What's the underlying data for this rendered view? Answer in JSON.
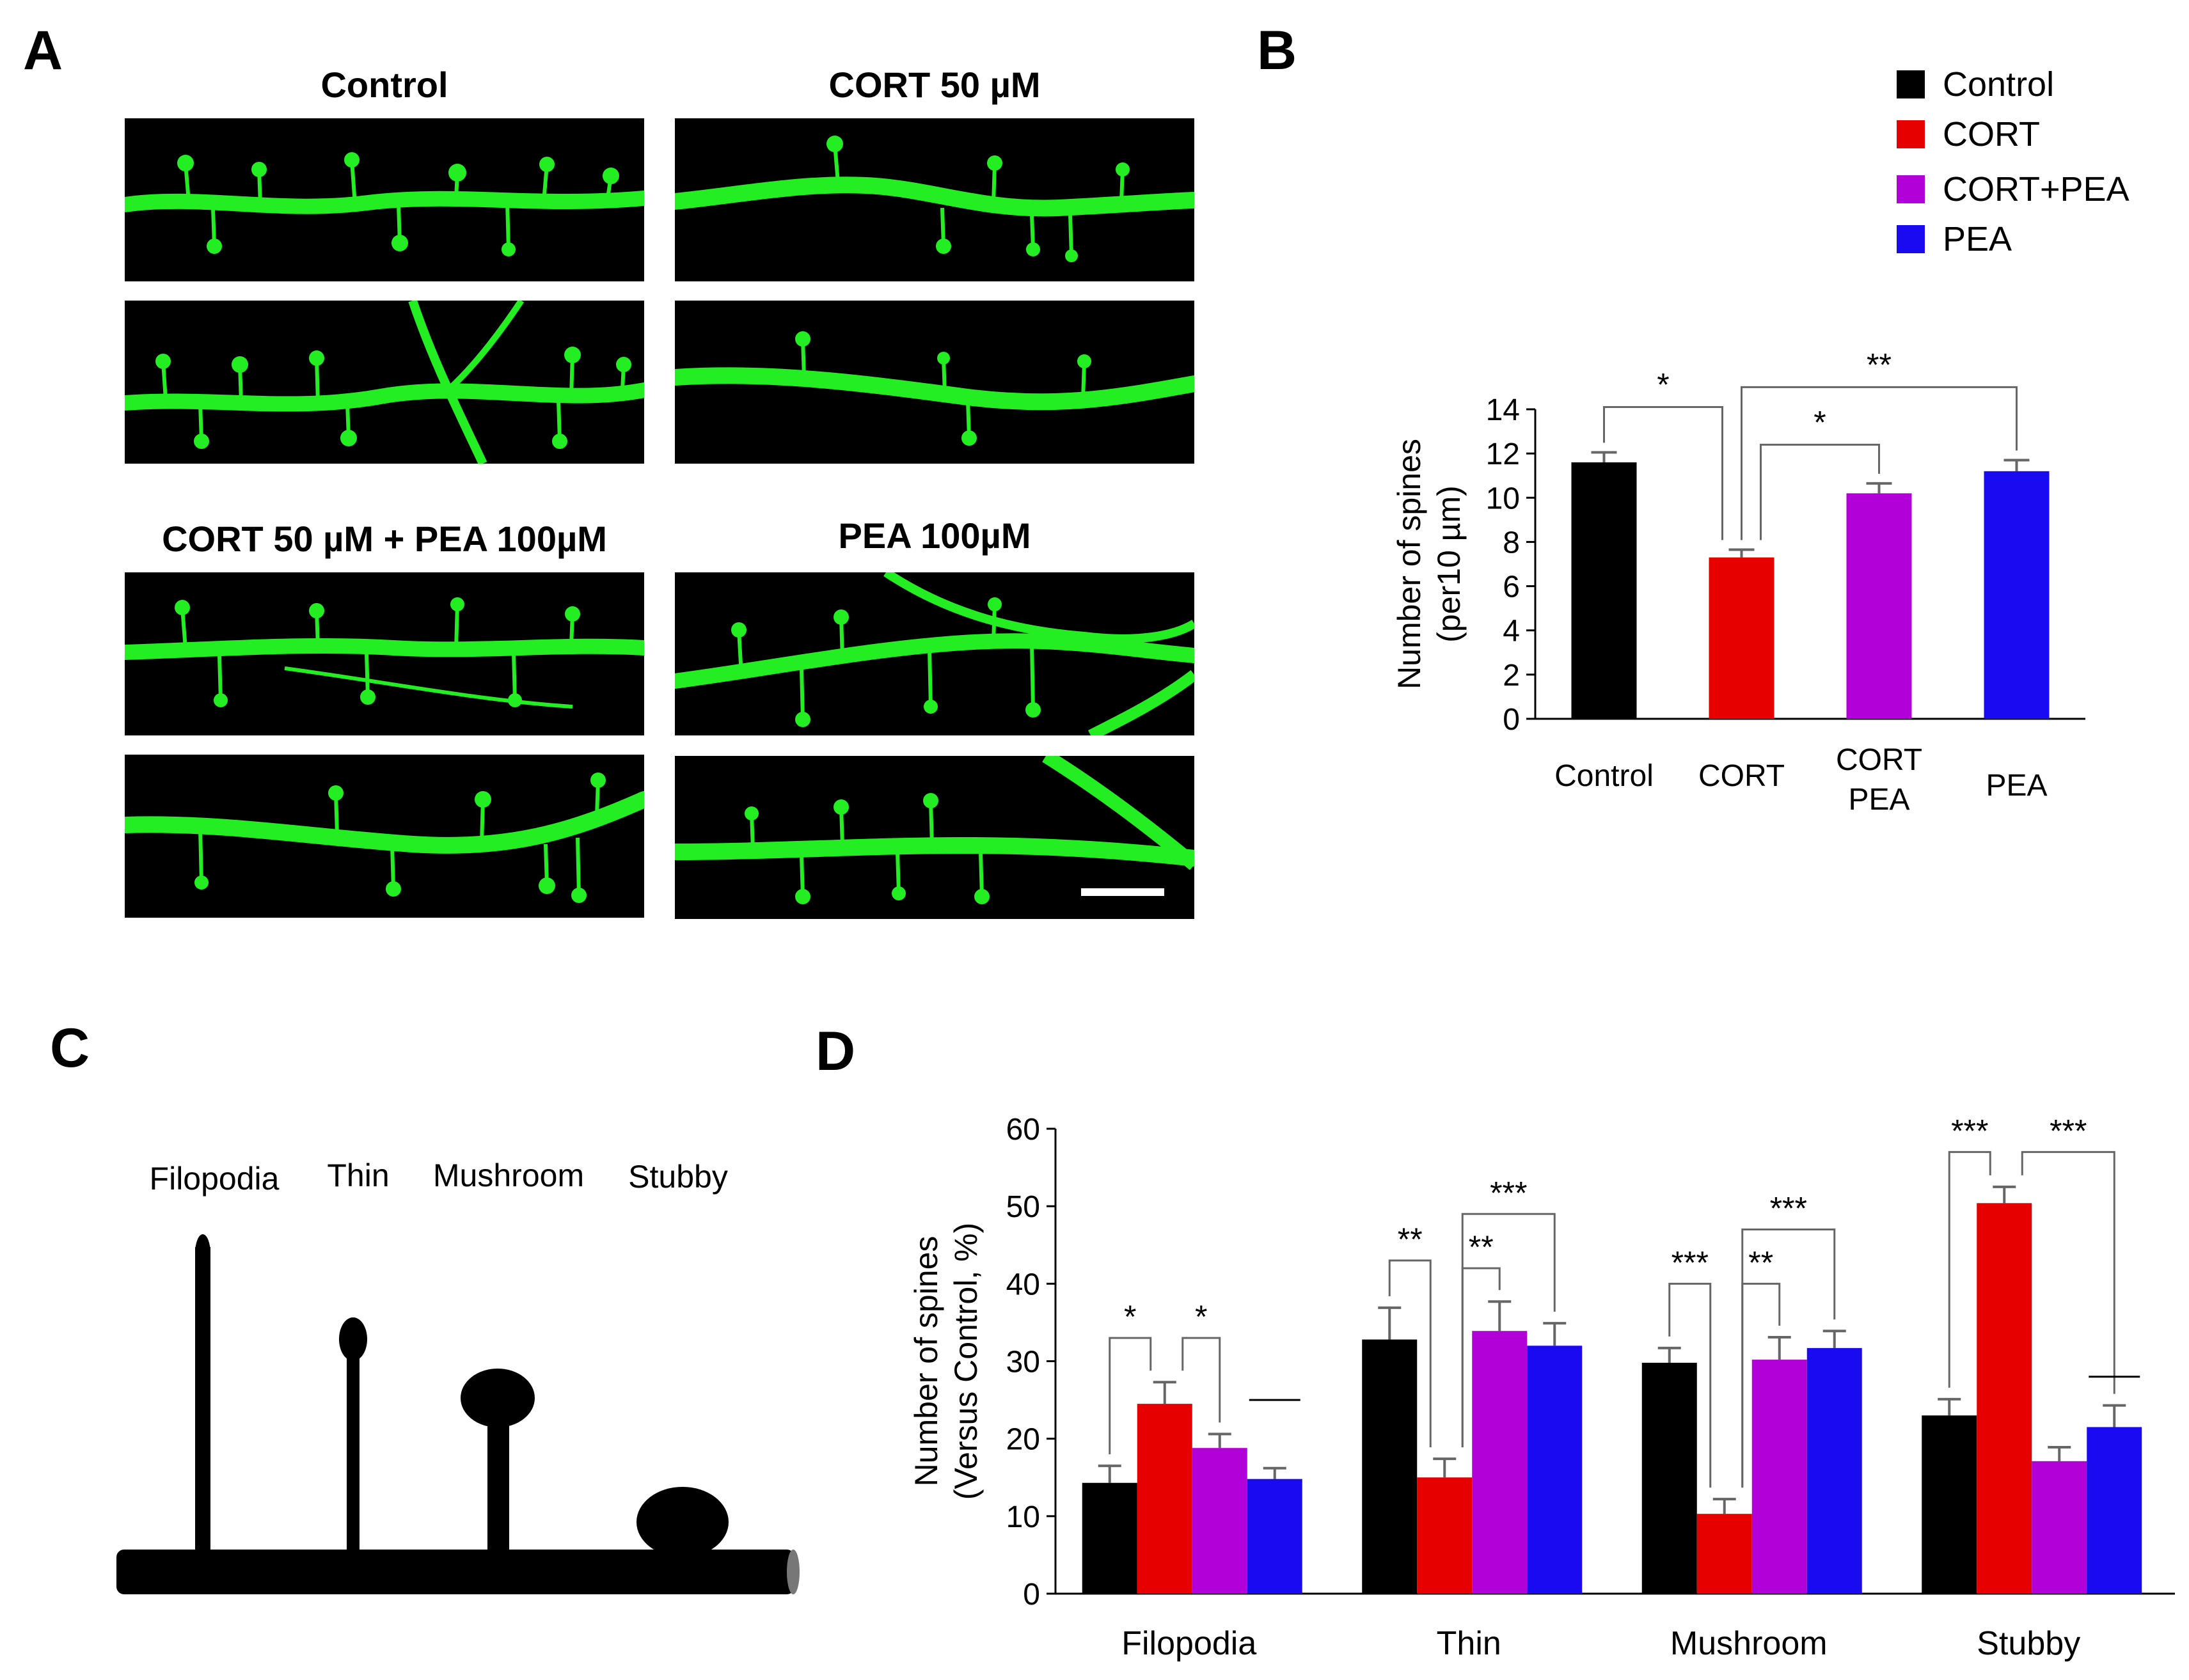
{
  "panels": {
    "a": "A",
    "b": "B",
    "c": "C",
    "d": "D"
  },
  "micrographs": {
    "titles": [
      "Control",
      "CORT 50 µM",
      "CORT 50 µM + PEA 100µM",
      "PEA 100µM"
    ],
    "dendrite_color": "#22ee22"
  },
  "schematic": {
    "labels": [
      "Filopodia",
      "Thin",
      "Mushroom",
      "Stubby"
    ]
  },
  "colors": {
    "Control": "#000000",
    "CORT": "#e60000",
    "CORT+PEA": "#b200d8",
    "PEA": "#1a0af0"
  },
  "chart_data": [
    {
      "type": "bar",
      "panel": "B",
      "title": "",
      "ylabel_lines": [
        "Number of spines",
        "(per10 µm)"
      ],
      "ylim": [
        0,
        14
      ],
      "yticks": [
        0,
        2,
        4,
        6,
        8,
        10,
        12,
        14
      ],
      "legend": [
        "Control",
        "CORT",
        "CORT+PEA",
        "PEA"
      ],
      "legend_position": "top-right",
      "categories": [
        "Control",
        "CORT",
        "CORT PEA",
        "PEA"
      ],
      "category_label_lines": [
        [
          "Control"
        ],
        [
          "CORT"
        ],
        [
          "CORT",
          "PEA"
        ],
        [
          "PEA"
        ]
      ],
      "series_colors": [
        "#000000",
        "#e60000",
        "#b200d8",
        "#1a0af0"
      ],
      "values": [
        11.6,
        7.3,
        10.2,
        11.2
      ],
      "errors": [
        0.45,
        0.35,
        0.45,
        0.5
      ],
      "significance": [
        {
          "from": 0,
          "to": 1,
          "label": "*"
        },
        {
          "from": 1,
          "to": 2,
          "label": "*"
        },
        {
          "from": 1,
          "to": 3,
          "label": "**"
        }
      ]
    },
    {
      "type": "bar",
      "panel": "D",
      "title": "",
      "ylabel_lines": [
        "Number of spines",
        "(Versus Control, %)"
      ],
      "ylim": [
        0,
        60
      ],
      "yticks": [
        0,
        10,
        20,
        30,
        40,
        50,
        60
      ],
      "categories": [
        "Filopodia",
        "Thin",
        "Mushroom",
        "Stubby"
      ],
      "series": [
        {
          "name": "Control",
          "color": "#000000",
          "values": [
            14.3,
            32.8,
            29.8,
            23.0
          ],
          "errors": [
            2.2,
            4.1,
            1.9,
            2.1
          ]
        },
        {
          "name": "CORT",
          "color": "#e60000",
          "values": [
            24.5,
            15.0,
            10.3,
            50.4
          ],
          "errors": [
            2.8,
            2.4,
            1.9,
            2.1
          ]
        },
        {
          "name": "CORT+PEA",
          "color": "#b200d8",
          "values": [
            18.8,
            33.9,
            30.2,
            17.1
          ],
          "errors": [
            1.8,
            3.8,
            2.9,
            1.8
          ]
        },
        {
          "name": "PEA",
          "color": "#1a0af0",
          "values": [
            14.8,
            32.0,
            31.7,
            21.5
          ],
          "errors": [
            1.4,
            2.9,
            2.2,
            2.8
          ]
        }
      ],
      "significance": [
        {
          "group": 0,
          "from": 0,
          "to": 1,
          "label": "*",
          "y": 33
        },
        {
          "group": 0,
          "from": 1,
          "to": 2,
          "label": "*",
          "y": 33
        },
        {
          "group": 0,
          "from": 3,
          "to": 3,
          "label": "—",
          "y": 25
        },
        {
          "group": 1,
          "from": 0,
          "to": 1,
          "label": "**",
          "y": 43
        },
        {
          "group": 1,
          "from": 1,
          "to": 2,
          "label": "**",
          "y": 42
        },
        {
          "group": 1,
          "from": 1,
          "to": 3,
          "label": "***",
          "y": 49
        },
        {
          "group": 2,
          "from": 0,
          "to": 1,
          "label": "***",
          "y": 40
        },
        {
          "group": 2,
          "from": 1,
          "to": 2,
          "label": "**",
          "y": 40
        },
        {
          "group": 2,
          "from": 1,
          "to": 3,
          "label": "***",
          "y": 47
        },
        {
          "group": 3,
          "from": 0,
          "to": 1,
          "label": "***",
          "y": 57
        },
        {
          "group": 3,
          "from": 1,
          "to": 3,
          "label": "***",
          "y": 57
        },
        {
          "group": 3,
          "from": 3,
          "to": 3,
          "label": "—",
          "y": 28
        }
      ]
    }
  ]
}
